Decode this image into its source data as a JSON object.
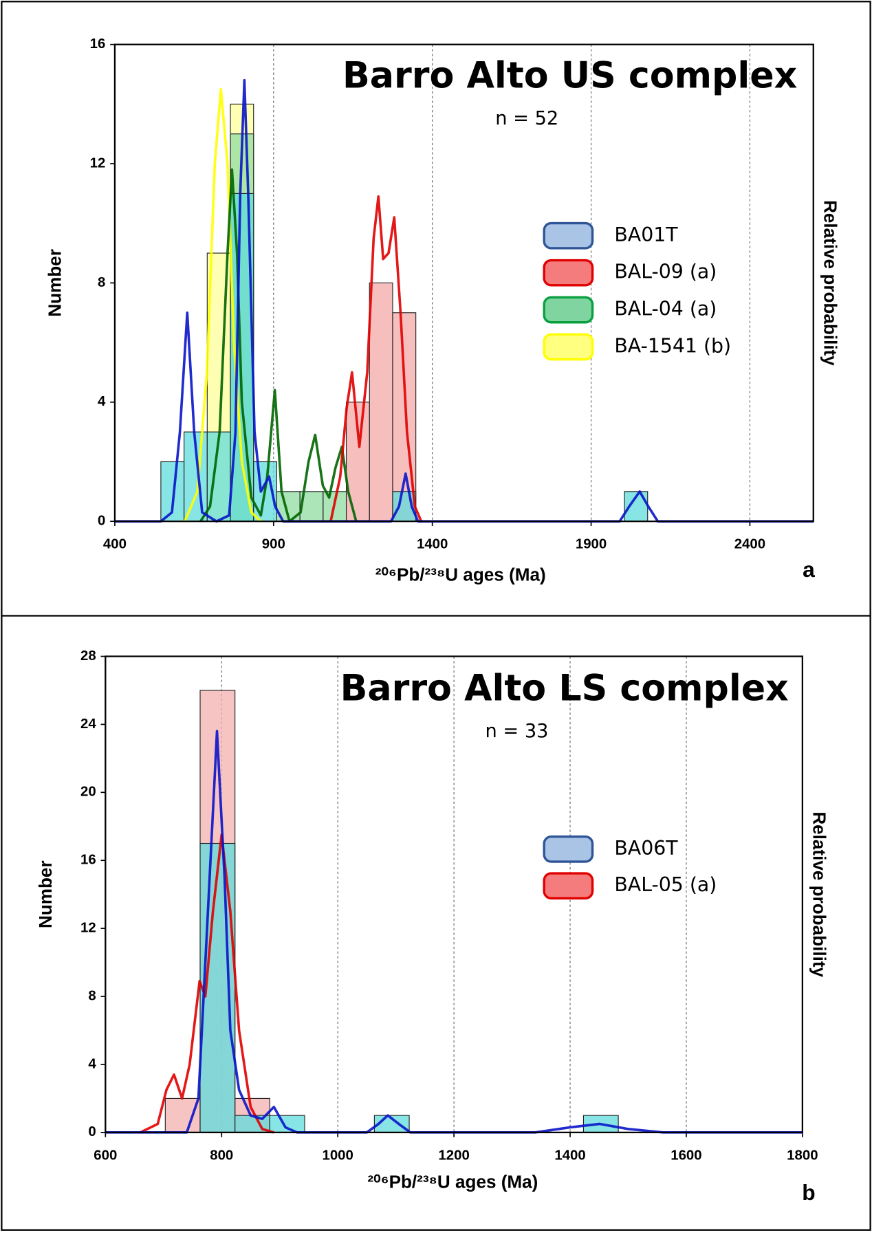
{
  "chart_data": [
    {
      "type": "histogram",
      "title": "Barro Alto US complex",
      "annotation": "n = 52",
      "panel_label": "a",
      "x_label": "²⁰⁶Pb/²³⁸U ages (Ma)",
      "y_label": "Number",
      "y2_label": "Relative probability",
      "xlim": [
        400,
        2600
      ],
      "xticks": [
        400,
        900,
        1400,
        1900,
        2400
      ],
      "ylim": [
        0,
        16
      ],
      "yticks": [
        0,
        4,
        8,
        12,
        16
      ],
      "grid": "x",
      "legend": "right",
      "bins": [
        545,
        618,
        691,
        764,
        837,
        910,
        983,
        1056,
        1129,
        1202,
        1275,
        1348,
        1421,
        1494,
        1567,
        1640,
        1713,
        1786,
        1859,
        1932,
        2005,
        2078
      ],
      "series": [
        {
          "name": "BA01T",
          "color": "#0a14c8",
          "fill": "#5fdcdc",
          "legend_fill": "#a9c4e4",
          "legend_edge": "#2f5597",
          "counts": [
            2,
            3,
            3,
            11,
            2,
            0,
            0,
            0,
            0,
            0,
            1,
            0,
            0,
            0,
            0,
            0,
            0,
            0,
            0,
            0,
            1
          ],
          "curve_x": [
            400,
            545,
            580,
            605,
            628,
            650,
            675,
            720,
            760,
            780,
            795,
            808,
            820,
            840,
            860,
            886,
            905,
            930,
            1270,
            1295,
            1316,
            1335,
            1355,
            1990,
            2020,
            2053,
            2080,
            2110,
            2600
          ],
          "curve_values": [
            0,
            0,
            0.3,
            3,
            7,
            3,
            0.3,
            0,
            0.2,
            3,
            11,
            14.8,
            11,
            3,
            1,
            1.5,
            0.5,
            0,
            0,
            0.5,
            1.6,
            0.5,
            0,
            0,
            0.5,
            1,
            0.5,
            0,
            0
          ]
        },
        {
          "name": "BAL-09 (a)",
          "color": "#e00000",
          "fill": "#f4a8a8",
          "legend_fill": "#f47c7c",
          "legend_edge": "#e00000",
          "counts": [
            0,
            0,
            0,
            0,
            0,
            0,
            0,
            0,
            4,
            8,
            7,
            0,
            0,
            0,
            0,
            0,
            0,
            0,
            0,
            0,
            0
          ],
          "curve_x": [
            1080,
            1110,
            1130,
            1147,
            1170,
            1195,
            1215,
            1230,
            1245,
            1262,
            1280,
            1300,
            1320,
            1345,
            1365
          ],
          "curve_values": [
            0,
            1.5,
            3.8,
            5,
            2.5,
            5,
            9.5,
            10.9,
            8.8,
            9,
            10.2,
            7,
            3,
            0.5,
            0
          ]
        },
        {
          "name": "BAL-04 (a)",
          "color": "#006400",
          "fill": "#90dca0",
          "legend_fill": "#7fd4a0",
          "legend_edge": "#0aa040",
          "counts": [
            0,
            0,
            0,
            13,
            0,
            1,
            1,
            1,
            0,
            0,
            0,
            0,
            0,
            0,
            0,
            0,
            0,
            0,
            0,
            0,
            0
          ],
          "curve_x": [
            670,
            700,
            730,
            755,
            769,
            785,
            800,
            830,
            860,
            880,
            904,
            925,
            950,
            985,
            1010,
            1031,
            1055,
            1075,
            1095,
            1115,
            1135,
            1160
          ],
          "curve_values": [
            0,
            0.5,
            3,
            9,
            11.8,
            9,
            4,
            0.8,
            0.2,
            1.5,
            4.4,
            1,
            0,
            0.3,
            2,
            2.9,
            1.2,
            0.8,
            1.8,
            2.5,
            1,
            0
          ]
        },
        {
          "name": "BA-1541 (b)",
          "color": "#ffff00",
          "fill": "#ffff99",
          "legend_fill": "#ffff80",
          "legend_edge": "#ffff00",
          "counts": [
            0,
            0,
            9,
            14,
            0,
            0,
            0,
            0,
            0,
            0,
            0,
            0,
            0,
            0,
            0,
            0,
            0,
            0,
            0,
            0,
            0
          ],
          "curve_x": [
            620,
            660,
            690,
            715,
            734,
            755,
            775,
            800,
            830,
            860
          ],
          "curve_values": [
            0,
            1,
            5,
            12,
            14.5,
            12,
            6,
            2,
            0.3,
            0
          ]
        }
      ]
    },
    {
      "type": "histogram",
      "title": "Barro Alto LS complex",
      "annotation": "n = 33",
      "panel_label": "b",
      "x_label": "²⁰⁶Pb/²³⁸U ages (Ma)",
      "y_label": "Number",
      "y2_label": "Relative probability",
      "xlim": [
        600,
        1800
      ],
      "xticks": [
        600,
        800,
        1000,
        1200,
        1400,
        1600,
        1800
      ],
      "ylim": [
        0,
        28
      ],
      "yticks": [
        0,
        4,
        8,
        12,
        16,
        20,
        24,
        28
      ],
      "grid": "x",
      "legend": "right",
      "bins": [
        703,
        763,
        823,
        883,
        943,
        1003,
        1063,
        1123,
        1183,
        1243,
        1303,
        1363,
        1423,
        1483
      ],
      "series": [
        {
          "name": "BA06T",
          "color": "#0a14c8",
          "fill": "#5fdcdc",
          "legend_fill": "#a9c4e4",
          "legend_edge": "#2f5597",
          "counts": [
            0,
            17,
            1,
            1,
            0,
            0,
            1,
            0,
            0,
            0,
            0,
            0,
            1
          ],
          "curve_x": [
            600,
            740,
            760,
            775,
            792,
            805,
            815,
            830,
            850,
            870,
            890,
            910,
            930,
            1050,
            1070,
            1086,
            1105,
            1125,
            1340,
            1400,
            1451,
            1500,
            1560,
            1800
          ],
          "curve_values": [
            0,
            0,
            2,
            12,
            23.6,
            15,
            6,
            2.5,
            1,
            0.8,
            1.5,
            0.3,
            0,
            0,
            0.5,
            1,
            0.5,
            0,
            0,
            0.3,
            0.5,
            0.2,
            0,
            0
          ]
        },
        {
          "name": "BAL-05 (a)",
          "color": "#e00000",
          "fill": "#f4b0b0",
          "legend_fill": "#f47c7c",
          "legend_edge": "#e00000",
          "counts": [
            2,
            26,
            2,
            0,
            0,
            0,
            0,
            0,
            0,
            0,
            0,
            0,
            0
          ],
          "curve_x": [
            660,
            690,
            705,
            718,
            732,
            745,
            762,
            772,
            785,
            800,
            815,
            830,
            850,
            870,
            890
          ],
          "curve_values": [
            0,
            0.5,
            2.5,
            3.4,
            2,
            4,
            8.9,
            8,
            13,
            17.5,
            13,
            6,
            1.5,
            0.2,
            0
          ]
        }
      ]
    }
  ]
}
